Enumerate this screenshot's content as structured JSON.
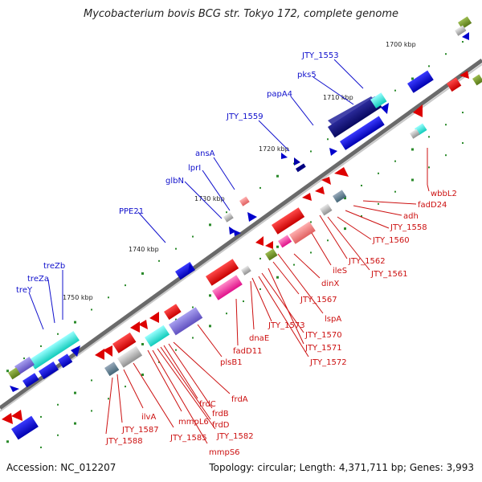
{
  "title": "Mycobacterium bovis BCG str. Tokyo 172, complete genome",
  "accession": "Accession: NC_012207",
  "summary": "Topology: circular; Length: 4,371,711 bp; Genes: 3,993",
  "colors": {
    "backbone": "#8a8a8a",
    "forward_label": "#1010cc",
    "reverse_label": "#cc1010",
    "tick": "#2a8a2a"
  },
  "scale_labels": [
    "1700 kbp",
    "1710 kbp",
    "1720 kbp",
    "1730 kbp",
    "1740 kbp",
    "1750 kbp"
  ],
  "forward_genes": [
    "treY",
    "treZa",
    "treZb",
    "PPE21",
    "glbN",
    "lprI",
    "ansA",
    "JTY_1559",
    "papA4",
    "pks5",
    "JTY_1553"
  ],
  "reverse_genes": [
    "wbbL2",
    "fadD24",
    "adh",
    "JTY_1558",
    "JTY_1560",
    "JTY_1562",
    "JTY_1561",
    "ileS",
    "dinX",
    "JTY_1567",
    "lspA",
    "JTY_1573",
    "JTY_1570",
    "JTY_1571",
    "JTY_1572",
    "dnaE",
    "fadD11",
    "plsB1",
    "frdA",
    "frdB",
    "frdC",
    "frdD",
    "mmpL6",
    "JTY_1582",
    "JTY_1585",
    "mmpS6",
    "ilvA",
    "JTY_1587",
    "JTY_1588"
  ]
}
